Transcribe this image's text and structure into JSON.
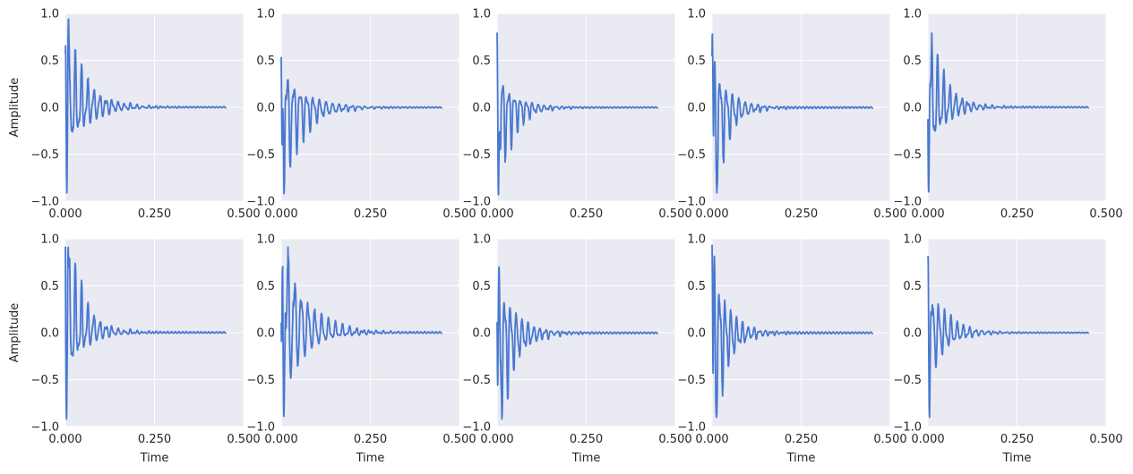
{
  "chart_data": {
    "type": "line",
    "layout": {
      "rows": 2,
      "cols": 5
    },
    "xlabel": "Time",
    "ylabel": "Amplitude",
    "xlim": [
      0.0,
      0.5
    ],
    "ylim": [
      -1.0,
      1.0
    ],
    "xticks": [
      0.0,
      0.25,
      0.5
    ],
    "xtick_labels": [
      "0.000",
      "0.250",
      "0.500"
    ],
    "yticks": [
      -1.0,
      -0.5,
      0.0,
      0.5,
      1.0
    ],
    "ytick_labels": [
      "−1.0",
      "−0.5",
      "0.0",
      "0.5",
      "1.0"
    ],
    "grid": true,
    "line_color": "#4878d0",
    "background_color": "#eaeaf2",
    "signal_duration": 0.45,
    "panels": [
      {
        "row": 0,
        "col": 0,
        "peak": 0.94,
        "trough": -0.91,
        "decay": 0.055,
        "freq": 58,
        "seed": 11,
        "series": [
          {
            "x": 0.0,
            "y": 0.0
          },
          {
            "x": 0.003,
            "y": 0.52
          },
          {
            "x": 0.006,
            "y": -0.4
          },
          {
            "x": 0.009,
            "y": 0.94
          },
          {
            "x": 0.013,
            "y": -0.91
          },
          {
            "x": 0.02,
            "y": 0.57
          },
          {
            "x": 0.027,
            "y": -0.45
          },
          {
            "x": 0.043,
            "y": 0.33
          },
          {
            "x": 0.1,
            "y": 0.18
          },
          {
            "x": 0.15,
            "y": 0.08
          },
          {
            "x": 0.22,
            "y": 0.02
          },
          {
            "x": 0.45,
            "y": 0.0
          }
        ]
      },
      {
        "row": 0,
        "col": 1,
        "peak": 0.53,
        "trough": -0.92,
        "decay": 0.06,
        "freq": 55,
        "seed": 23,
        "series": [
          {
            "x": 0.0,
            "y": 0.0
          },
          {
            "x": 0.004,
            "y": 0.53
          },
          {
            "x": 0.008,
            "y": -0.92
          },
          {
            "x": 0.014,
            "y": 0.43
          },
          {
            "x": 0.025,
            "y": -0.3
          },
          {
            "x": 0.05,
            "y": 0.25
          },
          {
            "x": 0.1,
            "y": 0.12
          },
          {
            "x": 0.16,
            "y": 0.05
          },
          {
            "x": 0.25,
            "y": 0.01
          },
          {
            "x": 0.45,
            "y": 0.0
          }
        ]
      },
      {
        "row": 0,
        "col": 2,
        "peak": 0.79,
        "trough": -0.93,
        "decay": 0.045,
        "freq": 60,
        "seed": 37,
        "series": [
          {
            "x": 0.0,
            "y": 0.0
          },
          {
            "x": 0.004,
            "y": 0.79
          },
          {
            "x": 0.008,
            "y": -0.93
          },
          {
            "x": 0.012,
            "y": 0.42
          },
          {
            "x": 0.03,
            "y": -0.3
          },
          {
            "x": 0.05,
            "y": 0.28
          },
          {
            "x": 0.09,
            "y": 0.12
          },
          {
            "x": 0.15,
            "y": 0.04
          },
          {
            "x": 0.2,
            "y": 0.02
          },
          {
            "x": 0.45,
            "y": 0.0
          }
        ]
      },
      {
        "row": 0,
        "col": 3,
        "peak": 0.78,
        "trough": -0.91,
        "decay": 0.04,
        "freq": 57,
        "seed": 41,
        "series": [
          {
            "x": 0.0,
            "y": 0.0
          },
          {
            "x": 0.004,
            "y": -0.91
          },
          {
            "x": 0.011,
            "y": 0.78
          },
          {
            "x": 0.017,
            "y": -0.6
          },
          {
            "x": 0.03,
            "y": 0.35
          },
          {
            "x": 0.06,
            "y": 0.2
          },
          {
            "x": 0.1,
            "y": 0.05
          },
          {
            "x": 0.15,
            "y": 0.03
          },
          {
            "x": 0.2,
            "y": 0.01
          },
          {
            "x": 0.45,
            "y": 0.0
          }
        ]
      },
      {
        "row": 0,
        "col": 4,
        "peak": 0.79,
        "trough": -0.9,
        "decay": 0.045,
        "freq": 59,
        "seed": 53,
        "series": [
          {
            "x": 0.0,
            "y": 0.0
          },
          {
            "x": 0.004,
            "y": 0.51
          },
          {
            "x": 0.008,
            "y": -0.9
          },
          {
            "x": 0.016,
            "y": 0.79
          },
          {
            "x": 0.022,
            "y": -0.4
          },
          {
            "x": 0.04,
            "y": 0.3
          },
          {
            "x": 0.08,
            "y": 0.12
          },
          {
            "x": 0.12,
            "y": 0.06
          },
          {
            "x": 0.2,
            "y": 0.02
          },
          {
            "x": 0.45,
            "y": 0.0
          }
        ]
      },
      {
        "row": 1,
        "col": 0,
        "peak": 0.91,
        "trough": -0.92,
        "decay": 0.045,
        "freq": 58,
        "seed": 67,
        "series": [
          {
            "x": 0.0,
            "y": 0.0
          },
          {
            "x": 0.003,
            "y": -0.38
          },
          {
            "x": 0.006,
            "y": 0.91
          },
          {
            "x": 0.01,
            "y": -0.92
          },
          {
            "x": 0.016,
            "y": 0.43
          },
          {
            "x": 0.03,
            "y": -0.3
          },
          {
            "x": 0.06,
            "y": 0.2
          },
          {
            "x": 0.1,
            "y": 0.08
          },
          {
            "x": 0.15,
            "y": 0.03
          },
          {
            "x": 0.45,
            "y": 0.0
          }
        ]
      },
      {
        "row": 1,
        "col": 1,
        "peak": 0.91,
        "trough": -0.89,
        "decay": 0.06,
        "freq": 52,
        "seed": 79,
        "series": [
          {
            "x": 0.0,
            "y": 0.0
          },
          {
            "x": 0.004,
            "y": 0.75
          },
          {
            "x": 0.007,
            "y": -0.66
          },
          {
            "x": 0.011,
            "y": 0.91
          },
          {
            "x": 0.015,
            "y": -0.89
          },
          {
            "x": 0.025,
            "y": 0.45
          },
          {
            "x": 0.05,
            "y": 0.35
          },
          {
            "x": 0.1,
            "y": 0.15
          },
          {
            "x": 0.16,
            "y": 0.06
          },
          {
            "x": 0.25,
            "y": 0.02
          },
          {
            "x": 0.45,
            "y": 0.0
          }
        ]
      },
      {
        "row": 1,
        "col": 2,
        "peak": 0.7,
        "trough": -0.92,
        "decay": 0.045,
        "freq": 61,
        "seed": 83,
        "series": [
          {
            "x": 0.0,
            "y": 0.0
          },
          {
            "x": 0.004,
            "y": 0.7
          },
          {
            "x": 0.008,
            "y": -0.92
          },
          {
            "x": 0.012,
            "y": 0.45
          },
          {
            "x": 0.03,
            "y": -0.3
          },
          {
            "x": 0.06,
            "y": 0.18
          },
          {
            "x": 0.1,
            "y": 0.06
          },
          {
            "x": 0.15,
            "y": 0.03
          },
          {
            "x": 0.45,
            "y": 0.0
          }
        ]
      },
      {
        "row": 1,
        "col": 3,
        "peak": 0.93,
        "trough": -0.9,
        "decay": 0.04,
        "freq": 62,
        "seed": 97,
        "series": [
          {
            "x": 0.0,
            "y": 0.0
          },
          {
            "x": 0.003,
            "y": 0.93
          },
          {
            "x": 0.006,
            "y": -0.9
          },
          {
            "x": 0.01,
            "y": 0.3
          },
          {
            "x": 0.03,
            "y": -0.25
          },
          {
            "x": 0.06,
            "y": 0.15
          },
          {
            "x": 0.1,
            "y": 0.05
          },
          {
            "x": 0.15,
            "y": 0.01
          },
          {
            "x": 0.45,
            "y": 0.0
          }
        ]
      },
      {
        "row": 1,
        "col": 4,
        "peak": 0.81,
        "trough": -0.9,
        "decay": 0.05,
        "freq": 58,
        "seed": 101,
        "series": [
          {
            "x": 0.0,
            "y": 0.0
          },
          {
            "x": 0.004,
            "y": 0.81
          },
          {
            "x": 0.008,
            "y": -0.9
          },
          {
            "x": 0.014,
            "y": 0.6
          },
          {
            "x": 0.03,
            "y": -0.4
          },
          {
            "x": 0.06,
            "y": 0.2
          },
          {
            "x": 0.1,
            "y": 0.06
          },
          {
            "x": 0.15,
            "y": 0.02
          },
          {
            "x": 0.45,
            "y": 0.0
          }
        ]
      }
    ]
  }
}
